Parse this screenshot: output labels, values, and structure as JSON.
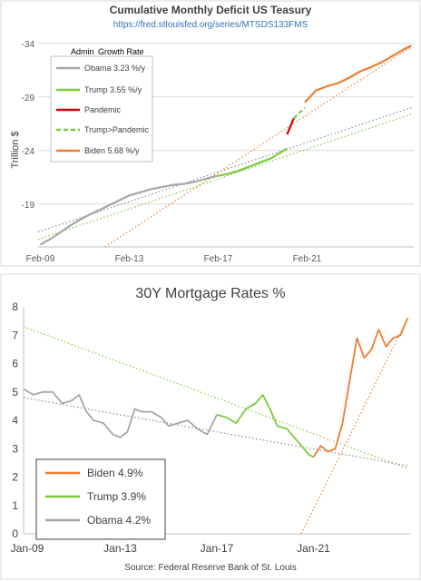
{
  "chart_data": [
    {
      "type": "line",
      "title": "Cumulative Monthly Deficit US Teasury",
      "subtitle": "https://fred.stlouisfed.org/series/MTSDS133FMS",
      "xlabel": "",
      "ylabel": "Trillion $",
      "x_ticks": [
        "Feb-09",
        "Feb-13",
        "Feb-17",
        "Feb-21"
      ],
      "y_ticks": [
        "-34",
        "-29",
        "-24",
        "-19"
      ],
      "ylim": [
        -15,
        -35
      ],
      "y_axis_inverted": true,
      "grid": "horizontal",
      "legend": {
        "placement": "top-left",
        "headers": [
          "Admin",
          "Growth Rate"
        ],
        "entries": [
          {
            "label": "Obama 3.23 %/y",
            "color": "#a6a6a6",
            "style": "solid"
          },
          {
            "label": "Trump 3.55 %/y",
            "color": "#7ccb3c",
            "style": "solid"
          },
          {
            "label": "Pandemic",
            "color": "#d00000",
            "style": "solid"
          },
          {
            "label": "Trump>Pandemic",
            "color": "#7ccb3c",
            "style": "dashed"
          },
          {
            "label": "Biden 5.68 %/y",
            "color": "#ed7d31",
            "style": "solid"
          }
        ]
      },
      "series": [
        {
          "name": "Obama 3.23 %/y",
          "color": "#a6a6a6",
          "x": [
            2009.1,
            2009.6,
            2010.1,
            2010.6,
            2011.1,
            2011.6,
            2012.1,
            2012.6,
            2013.1,
            2013.6,
            2014.1,
            2014.6,
            2015.1,
            2015.6,
            2016.1,
            2016.6,
            2017.0
          ],
          "y": [
            -15.2,
            -15.8,
            -16.5,
            -17.2,
            -17.8,
            -18.3,
            -18.8,
            -19.3,
            -19.8,
            -20.1,
            -20.4,
            -20.6,
            -20.8,
            -20.9,
            -21.1,
            -21.4,
            -21.6
          ]
        },
        {
          "name": "Trump 3.55 %/y",
          "color": "#7ccb3c",
          "x": [
            2017.0,
            2017.5,
            2018.0,
            2018.5,
            2019.0,
            2019.5,
            2019.9,
            2020.2
          ],
          "y": [
            -21.6,
            -21.8,
            -22.1,
            -22.5,
            -22.9,
            -23.3,
            -23.8,
            -24.2
          ]
        },
        {
          "name": "Pandemic",
          "color": "#d00000",
          "x": [
            2020.2,
            2020.5
          ],
          "y": [
            -25.5,
            -27.0
          ]
        },
        {
          "name": "Trump>Pandemic",
          "color": "#7ccb3c",
          "dashed": true,
          "x": [
            2020.5,
            2021.0
          ],
          "y": [
            -27.0,
            -28.0
          ]
        },
        {
          "name": "Biden 5.68 %/y",
          "color": "#ed7d31",
          "x": [
            2021.0,
            2021.5,
            2022.0,
            2022.5,
            2023.0,
            2023.5,
            2024.0,
            2024.5,
            2025.0,
            2025.5,
            2025.8
          ],
          "y": [
            -28.5,
            -29.6,
            -30.0,
            -30.3,
            -30.8,
            -31.4,
            -31.8,
            -32.3,
            -32.9,
            -33.5,
            -33.8
          ]
        }
      ],
      "trendlines": [
        {
          "of": "Obama 3.23 %/y",
          "color": "#8c8c8c",
          "x": [
            2009.0,
            2025.8
          ],
          "y": [
            -16.4,
            -28.0
          ]
        },
        {
          "of": "Trump 3.55 %/y",
          "color": "#7ccb3c",
          "x": [
            2009.0,
            2025.8
          ],
          "y": [
            -15.7,
            -27.4
          ]
        },
        {
          "of": "Biden 5.68 %/y",
          "color": "#ed7d31",
          "x": [
            2012.0,
            2025.8
          ],
          "y": [
            -15.0,
            -33.7
          ]
        }
      ]
    },
    {
      "type": "line",
      "title": "30Y Mortgage Rates %",
      "xlabel": "Source: Federal Reserve Bank of St. Louis",
      "ylabel": "",
      "x_ticks": [
        "Jan-09",
        "Jan-13",
        "Jan-17",
        "Jan-21"
      ],
      "y_ticks": [
        "0",
        "1",
        "2",
        "3",
        "4",
        "5",
        "6",
        "7",
        "8"
      ],
      "ylim": [
        0,
        8
      ],
      "grid": "none",
      "legend": {
        "placement": "bottom-left",
        "entries": [
          {
            "label": "Biden 4.9%",
            "color": "#ed7d31"
          },
          {
            "label": "Trump 3.9%",
            "color": "#7ccb3c"
          },
          {
            "label": "Obama 4.2%",
            "color": "#a6a6a6"
          }
        ]
      },
      "series": [
        {
          "name": "Obama 4.2%",
          "color": "#a6a6a6",
          "x": [
            2009.0,
            2009.4,
            2009.8,
            2010.2,
            2010.6,
            2011.0,
            2011.3,
            2011.6,
            2011.9,
            2012.3,
            2012.7,
            2013.0,
            2013.3,
            2013.6,
            2013.9,
            2014.3,
            2014.7,
            2015.0,
            2015.4,
            2015.8,
            2016.2,
            2016.6,
            2017.0
          ],
          "y": [
            5.1,
            4.9,
            5.0,
            5.0,
            4.6,
            4.7,
            4.9,
            4.3,
            4.0,
            3.9,
            3.5,
            3.4,
            3.6,
            4.4,
            4.3,
            4.3,
            4.1,
            3.8,
            3.9,
            4.0,
            3.7,
            3.5,
            4.2
          ]
        },
        {
          "name": "Trump 3.9%",
          "color": "#7ccb3c",
          "x": [
            2017.0,
            2017.4,
            2017.8,
            2018.2,
            2018.6,
            2018.9,
            2019.2,
            2019.5,
            2019.9,
            2020.2,
            2020.5,
            2020.8,
            2021.0
          ],
          "y": [
            4.2,
            4.1,
            3.9,
            4.4,
            4.6,
            4.9,
            4.4,
            3.8,
            3.7,
            3.4,
            3.1,
            2.8,
            2.7
          ]
        },
        {
          "name": "Biden 4.9%",
          "color": "#ed7d31",
          "x": [
            2021.0,
            2021.3,
            2021.6,
            2021.9,
            2022.2,
            2022.5,
            2022.8,
            2023.1,
            2023.4,
            2023.7,
            2024.0,
            2024.3,
            2024.6,
            2024.9
          ],
          "y": [
            2.7,
            3.1,
            2.9,
            3.0,
            3.9,
            5.4,
            6.9,
            6.2,
            6.5,
            7.2,
            6.6,
            6.9,
            7.0,
            7.6
          ]
        }
      ],
      "trendlines": [
        {
          "of": "Trump 3.9%",
          "color": "#7ccb3c",
          "x": [
            2009.0,
            2024.9
          ],
          "y": [
            7.3,
            2.3
          ]
        },
        {
          "of": "Obama 4.2%",
          "color": "#8c8c8c",
          "x": [
            2009.0,
            2024.9
          ],
          "y": [
            4.8,
            2.4
          ]
        },
        {
          "of": "Biden 4.9%",
          "color": "#ed7d31",
          "x": [
            2020.5,
            2024.9
          ],
          "y": [
            0.0,
            7.6
          ]
        }
      ]
    }
  ]
}
